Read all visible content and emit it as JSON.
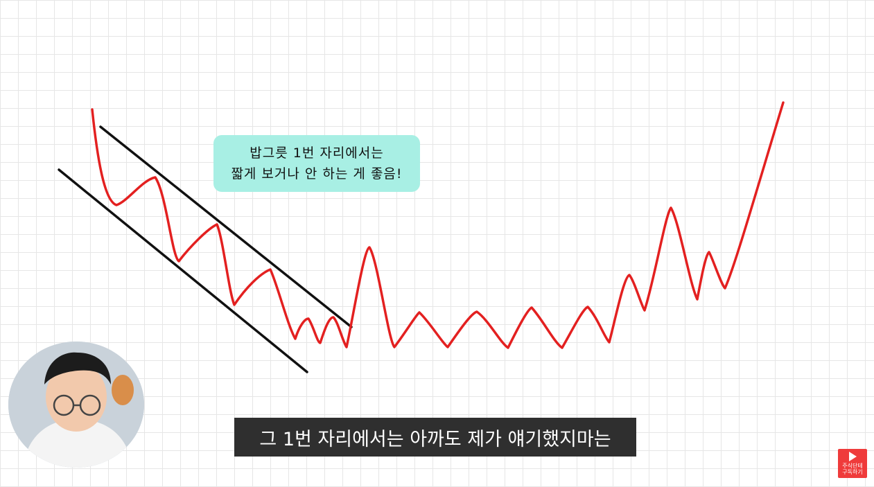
{
  "note": {
    "line1": "밥그릇 1번 자리에서는",
    "line2": "짧게 보거나 안 하는 게 좋음!"
  },
  "subtitle": {
    "text": "그 1번 자리에서는 아까도 제가 얘기했지마는"
  },
  "subscribe": {
    "line1": "주식단테",
    "line2": "구독하기",
    "icon": "play-icon"
  },
  "colors": {
    "price_line": "#e32020",
    "channel_line": "#111111",
    "note_bg": "#a8efe4",
    "subtitle_bg": "#2f2f2f",
    "subscribe_bg": "#ef3b3b"
  }
}
